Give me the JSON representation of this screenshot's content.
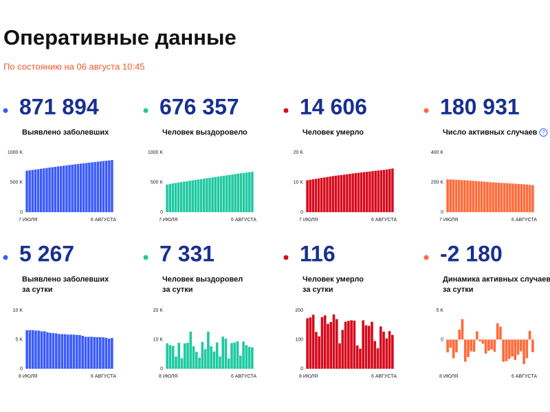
{
  "header": {
    "title": "Оперативные данные",
    "subtitle": "По состоянию на 06 августа 10:45"
  },
  "cards": [
    {
      "color": "#3a5bfc",
      "number": "871 894",
      "label": [
        "Выявлено заболевших"
      ],
      "chart_data": {
        "type": "bar",
        "categories": [
          "7 ИЮЛЯ",
          null,
          null,
          null,
          null,
          null,
          null,
          null,
          null,
          null,
          null,
          null,
          null,
          null,
          null,
          null,
          null,
          null,
          null,
          null,
          null,
          null,
          null,
          null,
          null,
          null,
          null,
          null,
          null,
          null,
          "6 АВГУСТА"
        ],
        "values": [
          694000,
          700600,
          707300,
          713900,
          720500,
          727000,
          733700,
          739900,
          746400,
          752800,
          759200,
          765400,
          771500,
          777500,
          783300,
          789200,
          795000,
          800800,
          806700,
          812500,
          818100,
          823500,
          828900,
          834500,
          839900,
          845400,
          850900,
          856300,
          861400,
          866600,
          871900
        ],
        "ylim": [
          0,
          1000000
        ],
        "yticks": [
          0,
          {
            "value": 500000,
            "label": "500 K"
          },
          {
            "value": 1000000,
            "label": "1000 K"
          }
        ]
      }
    },
    {
      "color": "#1ec9a0",
      "number": "676 357",
      "label": [
        "Человек выздоровело"
      ],
      "chart_data": {
        "type": "bar",
        "categories": [
          "7 ИЮЛЯ",
          null,
          null,
          null,
          null,
          null,
          null,
          null,
          null,
          null,
          null,
          null,
          null,
          null,
          null,
          null,
          null,
          null,
          null,
          null,
          null,
          null,
          null,
          null,
          null,
          null,
          null,
          null,
          null,
          null,
          "6 АВГУСТА"
        ],
        "values": [
          463000,
          472000,
          481000,
          489000,
          497000,
          504000,
          511000,
          518000,
          526000,
          533000,
          540000,
          547000,
          554000,
          561000,
          568000,
          575000,
          582000,
          589000,
          596000,
          603000,
          610000,
          617000,
          624000,
          631000,
          638000,
          645000,
          651000,
          657000,
          664000,
          670000,
          676400
        ],
        "ylim": [
          0,
          1000000
        ],
        "yticks": [
          0,
          {
            "value": 500000,
            "label": "500 K"
          },
          {
            "value": 1000000,
            "label": "1000 K"
          }
        ]
      }
    },
    {
      "color": "#d6091b",
      "number": "14 606",
      "label": [
        "Человек умерло"
      ],
      "chart_data": {
        "type": "bar",
        "categories": [
          "7 ИЮЛЯ",
          null,
          null,
          null,
          null,
          null,
          null,
          null,
          null,
          null,
          null,
          null,
          null,
          null,
          null,
          null,
          null,
          null,
          null,
          null,
          null,
          null,
          null,
          null,
          null,
          null,
          null,
          null,
          null,
          null,
          "6 АВГУСТА"
        ],
        "values": [
          10700,
          10850,
          11000,
          11170,
          11330,
          11490,
          11640,
          11790,
          11930,
          12080,
          12220,
          12340,
          12460,
          12580,
          12710,
          12820,
          12950,
          13070,
          13190,
          13300,
          13420,
          13520,
          13630,
          13750,
          13860,
          13960,
          14060,
          14180,
          14300,
          14450,
          14610
        ],
        "ylim": [
          0,
          20000
        ],
        "yticks": [
          0,
          {
            "value": 10000,
            "label": "10 K"
          },
          {
            "value": 20000,
            "label": "20 K"
          }
        ]
      }
    },
    {
      "color": "#ff6a39",
      "number": "180 931",
      "label": [
        "Число активных случаев"
      ],
      "help": "?",
      "chart_data": {
        "type": "bar",
        "categories": [
          "7 ИЮЛЯ",
          null,
          null,
          null,
          null,
          null,
          null,
          null,
          null,
          null,
          null,
          null,
          null,
          null,
          null,
          null,
          null,
          null,
          null,
          null,
          null,
          null,
          null,
          null,
          null,
          null,
          null,
          null,
          null,
          null,
          "6 АВГУСТА"
        ],
        "values": [
          220000,
          219000,
          218500,
          217000,
          216000,
          215000,
          214000,
          213000,
          211500,
          210000,
          208500,
          207000,
          205500,
          204000,
          202500,
          201000,
          200000,
          198500,
          197000,
          196000,
          195000,
          194000,
          193000,
          191500,
          190000,
          189000,
          188000,
          186500,
          185000,
          183000,
          181000
        ],
        "ylim": [
          0,
          400000
        ],
        "yticks": [
          0,
          {
            "value": 200000,
            "label": "200 K"
          },
          {
            "value": 400000,
            "label": "400 K"
          }
        ]
      }
    },
    {
      "color": "#3a5bfc",
      "number": "5 267",
      "label": [
        "Выявлено заболевших",
        "за сутки"
      ],
      "chart_data": {
        "type": "bar",
        "categories": [
          "8 ИЮЛЯ",
          null,
          null,
          null,
          null,
          null,
          null,
          null,
          null,
          null,
          null,
          null,
          null,
          null,
          null,
          null,
          null,
          null,
          null,
          null,
          null,
          null,
          null,
          null,
          null,
          null,
          null,
          null,
          null,
          "6 АВГУСТА"
        ],
        "values": [
          6600,
          6630,
          6610,
          6550,
          6540,
          6430,
          6420,
          6250,
          6150,
          6100,
          6060,
          5950,
          5940,
          5920,
          5850,
          5860,
          5840,
          5800,
          5770,
          5640,
          5480,
          5470,
          5480,
          5440,
          5420,
          5400,
          5390,
          5300,
          5160,
          5270
        ],
        "ylim": [
          0,
          10000
        ],
        "yticks": [
          0,
          {
            "value": 5000,
            "label": "5 K"
          },
          {
            "value": 10000,
            "label": "10 K"
          }
        ]
      }
    },
    {
      "color": "#1ec9a0",
      "number": "7 331",
      "label": [
        "Человек выздоровел",
        "за сутки"
      ],
      "chart_data": {
        "type": "bar",
        "categories": [
          "8 ИЮЛЯ",
          null,
          null,
          null,
          null,
          null,
          null,
          null,
          null,
          null,
          null,
          null,
          null,
          null,
          null,
          null,
          null,
          null,
          null,
          null,
          null,
          null,
          null,
          null,
          null,
          null,
          null,
          null,
          null,
          "6 АВГУСТА"
        ],
        "values": [
          8700,
          8100,
          7800,
          4200,
          8900,
          3600,
          8700,
          8900,
          12700,
          7700,
          5800,
          3800,
          9200,
          6700,
          12700,
          7700,
          5900,
          9000,
          4200,
          11000,
          10300,
          3500,
          8800,
          9000,
          9400,
          4500,
          9300,
          8100,
          7500,
          7300
        ],
        "ylim": [
          0,
          20000
        ],
        "yticks": [
          0,
          {
            "value": 10000,
            "label": "10 K"
          },
          {
            "value": 20000,
            "label": "20 K"
          }
        ]
      }
    },
    {
      "color": "#d6091b",
      "number": "116",
      "label": [
        "Человек умерло",
        "за сутки"
      ],
      "chart_data": {
        "type": "bar",
        "categories": [
          "8 ИЮЛЯ",
          null,
          null,
          null,
          null,
          null,
          null,
          null,
          null,
          null,
          null,
          null,
          null,
          null,
          null,
          null,
          null,
          null,
          null,
          null,
          null,
          null,
          null,
          null,
          null,
          null,
          null,
          null,
          null,
          "6 АВГУСТА"
        ],
        "values": [
          173,
          176,
          185,
          126,
          111,
          177,
          183,
          154,
          160,
          186,
          170,
          87,
          133,
          161,
          164,
          166,
          165,
          80,
          69,
          166,
          149,
          147,
          161,
          95,
          70,
          145,
          127,
          104,
          129,
          116
        ],
        "ylim": [
          0,
          200
        ],
        "yticks": [
          0,
          100,
          200
        ]
      }
    },
    {
      "color": "#ff6a39",
      "number": "-2 180",
      "label": [
        "Динамика активных случаев",
        "за сутки"
      ],
      "chart_data": {
        "type": "bar",
        "categories": [
          "8 ИЮЛЯ",
          null,
          null,
          null,
          null,
          null,
          null,
          null,
          null,
          null,
          null,
          null,
          null,
          null,
          null,
          null,
          null,
          null,
          null,
          null,
          null,
          null,
          null,
          null,
          null,
          null,
          null,
          null,
          null,
          "6 АВГУСТА"
        ],
        "values": [
          -2200,
          -1400,
          -3200,
          -2200,
          1700,
          3500,
          -3800,
          -3000,
          -2000,
          -2100,
          1400,
          -300,
          -700,
          -2400,
          -1900,
          -1700,
          -2100,
          2800,
          2200,
          -3800,
          -3700,
          -3300,
          -2900,
          -3500,
          -2600,
          -2000,
          -4200,
          -3200,
          1500,
          -2180
        ],
        "ylim": [
          -5000,
          5000
        ],
        "yticks": [
          0,
          {
            "value": 5000,
            "label": "5 K"
          }
        ]
      }
    }
  ]
}
